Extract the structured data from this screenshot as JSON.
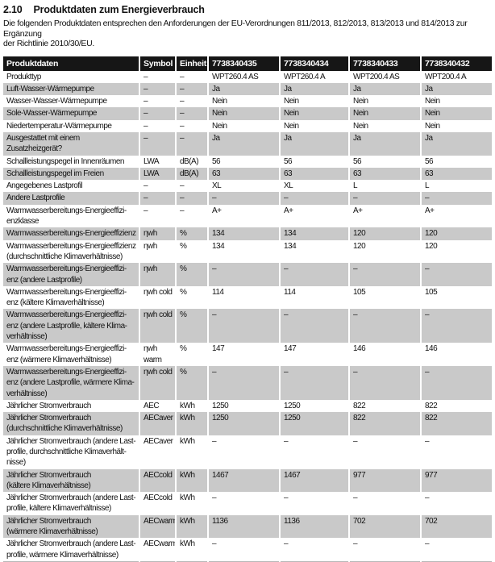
{
  "section": {
    "number": "2.10",
    "title": "Produktdaten zum Energieverbrauch"
  },
  "intro": "Die folgenden Produktdaten entsprechen den Anforderungen der EU-Verordnungen 811/2013, 812/2013, 813/2013 und 814/2013 zur Ergänzung\nder Richtlinie 2010/30/EU.",
  "colors": {
    "header_bg": "#161616",
    "header_text": "#ffffff",
    "stripe_bg": "#c9c9c9",
    "body_text": "#111111"
  },
  "table": {
    "headers": [
      "Produktdaten",
      "Symbol",
      "Einheit",
      "7738340435",
      "7738340434",
      "7738340433",
      "7738340432"
    ],
    "rows": [
      {
        "label": "Produkttyp",
        "symbol": "–",
        "unit": "–",
        "values": [
          "WPT260.4 AS",
          "WPT260.4 A",
          "WPT200.4 AS",
          "WPT200.4 A"
        ]
      },
      {
        "label": "Luft-Wasser-Wärmepumpe",
        "symbol": "–",
        "unit": "–",
        "values": [
          "Ja",
          "Ja",
          "Ja",
          "Ja"
        ]
      },
      {
        "label": "Wasser-Wasser-Wärmepumpe",
        "symbol": "–",
        "unit": "–",
        "values": [
          "Nein",
          "Nein",
          "Nein",
          "Nein"
        ]
      },
      {
        "label": "Sole-Wasser-Wärmepumpe",
        "symbol": "–",
        "unit": "–",
        "values": [
          "Nein",
          "Nein",
          "Nein",
          "Nein"
        ]
      },
      {
        "label": "Niedertemperatur-Wärmepumpe",
        "symbol": "–",
        "unit": "–",
        "values": [
          "Nein",
          "Nein",
          "Nein",
          "Nein"
        ]
      },
      {
        "label": "Ausgestattet mit einem Zusatzheizgerät?",
        "symbol": "–",
        "unit": "–",
        "values": [
          "Ja",
          "Ja",
          "Ja",
          "Ja"
        ]
      },
      {
        "label": "Schallleistungspegel in Innenräumen",
        "symbol": "LWA",
        "unit": "dB(A)",
        "values": [
          "56",
          "56",
          "56",
          "56"
        ]
      },
      {
        "label": "Schallleistungspegel im Freien",
        "symbol": "LWA",
        "unit": "dB(A)",
        "values": [
          "63",
          "63",
          "63",
          "63"
        ]
      },
      {
        "label": "Angegebenes Lastprofil",
        "symbol": "–",
        "unit": "–",
        "values": [
          "XL",
          "XL",
          "L",
          "L"
        ]
      },
      {
        "label": "Andere Lastprofile",
        "symbol": "–",
        "unit": "–",
        "values": [
          "–",
          "–",
          "–",
          "–"
        ]
      },
      {
        "label": "Warmwasserbereitungs-Energieeffizi-\nenzklasse",
        "symbol": "–",
        "unit": "–",
        "values": [
          "A+",
          "A+",
          "A+",
          "A+"
        ]
      },
      {
        "label": "Warmwasserbereitungs-Energieeffizienz",
        "symbol": "ηwh",
        "unit": "%",
        "values": [
          "134",
          "134",
          "120",
          "120"
        ]
      },
      {
        "label": "Warmwasserbereitungs-Energieeffizienz\n(durchschnittliche Klimaverhältnisse)",
        "symbol": "ηwh",
        "unit": "%",
        "values": [
          "134",
          "134",
          "120",
          "120"
        ]
      },
      {
        "label": "Warmwasserbereitungs-Energieeffizi-\nenz (andere Lastprofile)",
        "symbol": "ηwh",
        "unit": "%",
        "values": [
          "–",
          "–",
          "–",
          "–"
        ]
      },
      {
        "label": "Warmwasserbereitungs-Energieeffizi-\nenz (kältere Klimaverhältnisse)",
        "symbol": "ηwh cold",
        "unit": "%",
        "values": [
          "114",
          "114",
          "105",
          "105"
        ]
      },
      {
        "label": "Warmwasserbereitungs-Energieeffizi-\nenz (andere Lastprofile, kältere Klima-\nverhältnisse)",
        "symbol": "ηwh cold",
        "unit": "%",
        "values": [
          "–",
          "–",
          "–",
          "–"
        ]
      },
      {
        "label": "Warmwasserbereitungs-Energieeffizi-\nenz (wärmere Klimaverhältnisse)",
        "symbol": "ηwh warm",
        "unit": "%",
        "values": [
          "147",
          "147",
          "146",
          "146"
        ]
      },
      {
        "label": "Warmwasserbereitungs-Energieeffizi-\nenz (andere Lastprofile, wärmere Klima-\nverhältnisse)",
        "symbol": "ηwh cold",
        "unit": "%",
        "values": [
          "–",
          "–",
          "–",
          "–"
        ]
      },
      {
        "label": "Jährlicher Stromverbrauch",
        "symbol": "AEC",
        "unit": "kWh",
        "values": [
          "1250",
          "1250",
          "822",
          "822"
        ]
      },
      {
        "label": "Jährlicher Stromverbrauch\n(durchschnittliche Klimaverhältnisse)",
        "symbol": "AECaver",
        "unit": "kWh",
        "values": [
          "1250",
          "1250",
          "822",
          "822"
        ]
      },
      {
        "label": "Jährlicher Stromverbrauch (andere Last-\nprofile, durchschnittliche Klimaverhält-\nnisse)",
        "symbol": "AECaver",
        "unit": "kWh",
        "values": [
          "–",
          "–",
          "–",
          "–"
        ]
      },
      {
        "label": "Jährlicher Stromverbrauch\n(kältere Klimaverhältnisse)",
        "symbol": "AECcold",
        "unit": "kWh",
        "values": [
          "1467",
          "1467",
          "977",
          "977"
        ]
      },
      {
        "label": "Jährlicher Stromverbrauch (andere Last-\nprofile, kältere Klimaverhältnisse)",
        "symbol": "AECcold",
        "unit": "kWh",
        "values": [
          "–",
          "–",
          "–",
          "–"
        ]
      },
      {
        "label": "Jährlicher Stromverbrauch\n(wärmere Klimaverhältnisse)",
        "symbol": "AECwarm",
        "unit": "kWh",
        "values": [
          "1136",
          "1136",
          "702",
          "702"
        ]
      },
      {
        "label": "Jährlicher Stromverbrauch (andere Last-\nprofile, wärmere Klimaverhältnisse)",
        "symbol": "AECwarm",
        "unit": "kWh",
        "values": [
          "–",
          "–",
          "–",
          "–"
        ]
      }
    ]
  }
}
